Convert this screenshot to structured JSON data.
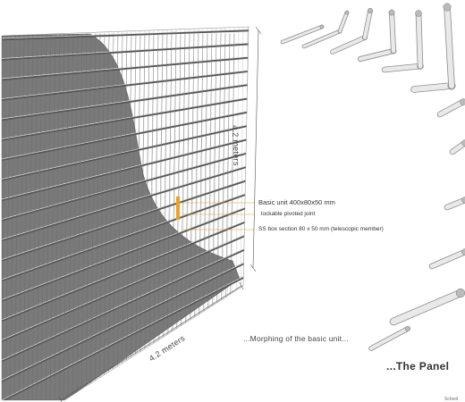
{
  "dimensions": {
    "height_label": "4.2 meters",
    "width_label": "4.2 meters"
  },
  "callouts": [
    {
      "text": "Basic unit 400x80x50 mm"
    },
    {
      "text": "lockable pivoted joint"
    },
    {
      "text": "SS box section 80 x 50 mm (telescopic member)"
    }
  ],
  "captions": {
    "morphing": "...Morphing of the basic unit...",
    "panel": "...The Panel"
  },
  "footer": {
    "text": "School"
  },
  "colors": {
    "wall_gray": "#777777",
    "joint_orange": "#f0a020",
    "steel_light": "#e8e8e8",
    "steel_dark": "#9a9a9a"
  }
}
